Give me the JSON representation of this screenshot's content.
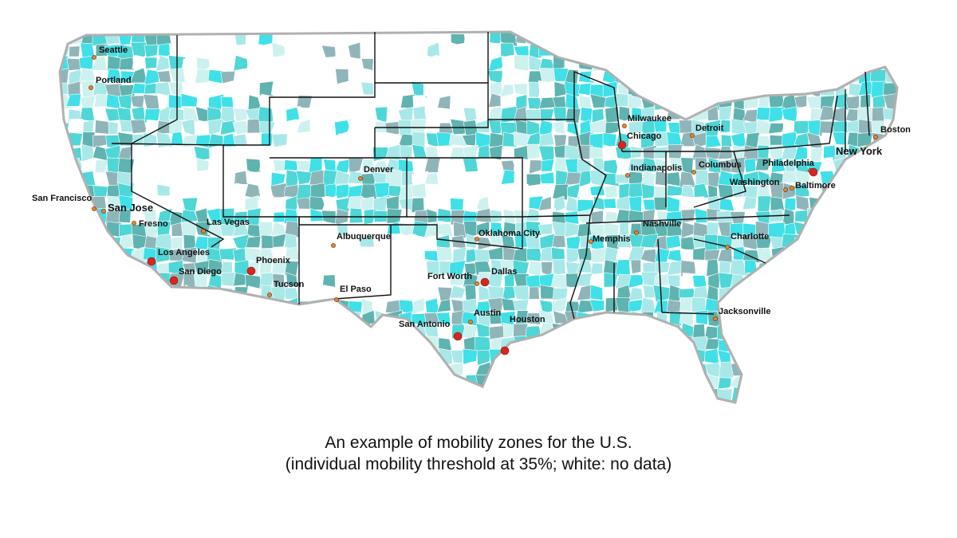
{
  "map": {
    "legend_note": "white: no data",
    "colors": {
      "teal_dark": "#5fb3b0",
      "teal_mid": "#4fd6d6",
      "teal_light": "#a8e8e8",
      "cyan": "#3fe0e8",
      "aqua_pale": "#cdf1ef",
      "blue_grey": "#8fb5b9",
      "no_data": "#ffffff",
      "border": "#111111",
      "outline": "#b0b0b0",
      "major_city": "#d8261e",
      "minor_city": "#d98a2b"
    },
    "cities": [
      {
        "name": "Seattle",
        "kind": "minor",
        "size": "normal"
      },
      {
        "name": "Portland",
        "kind": "minor",
        "size": "normal"
      },
      {
        "name": "San Francisco",
        "kind": "minor",
        "size": "normal"
      },
      {
        "name": "San Jose",
        "kind": "minor",
        "size": "big"
      },
      {
        "name": "Fresno",
        "kind": "minor",
        "size": "normal"
      },
      {
        "name": "Las Vegas",
        "kind": "minor",
        "size": "normal"
      },
      {
        "name": "Los Angeles",
        "kind": "major",
        "size": "normal"
      },
      {
        "name": "San Diego",
        "kind": "major",
        "size": "normal"
      },
      {
        "name": "Phoenix",
        "kind": "major",
        "size": "normal"
      },
      {
        "name": "Tucson",
        "kind": "minor",
        "size": "normal"
      },
      {
        "name": "Albuquerque",
        "kind": "minor",
        "size": "normal"
      },
      {
        "name": "El Paso",
        "kind": "minor",
        "size": "normal"
      },
      {
        "name": "Denver",
        "kind": "minor",
        "size": "normal"
      },
      {
        "name": "Oklahoma City",
        "kind": "minor",
        "size": "normal"
      },
      {
        "name": "Fort Worth",
        "kind": "minor",
        "size": "normal"
      },
      {
        "name": "Dallas",
        "kind": "major",
        "size": "normal"
      },
      {
        "name": "Austin",
        "kind": "minor",
        "size": "normal"
      },
      {
        "name": "San Antonio",
        "kind": "major",
        "size": "normal"
      },
      {
        "name": "Houston",
        "kind": "major",
        "size": "normal"
      },
      {
        "name": "Memphis",
        "kind": "minor",
        "size": "normal"
      },
      {
        "name": "Nashville",
        "kind": "minor",
        "size": "normal"
      },
      {
        "name": "Charlotte",
        "kind": "minor",
        "size": "normal"
      },
      {
        "name": "Jacksonville",
        "kind": "minor",
        "size": "normal"
      },
      {
        "name": "Milwaukee",
        "kind": "minor",
        "size": "normal"
      },
      {
        "name": "Chicago",
        "kind": "major",
        "size": "normal"
      },
      {
        "name": "Detroit",
        "kind": "minor",
        "size": "normal"
      },
      {
        "name": "Indianapolis",
        "kind": "minor",
        "size": "normal"
      },
      {
        "name": "Columbus",
        "kind": "minor",
        "size": "normal"
      },
      {
        "name": "Washington",
        "kind": "minor",
        "size": "normal"
      },
      {
        "name": "Baltimore",
        "kind": "minor",
        "size": "normal"
      },
      {
        "name": "Philadelphia",
        "kind": "minor",
        "size": "normal"
      },
      {
        "name": "New York",
        "kind": "major",
        "size": "big"
      },
      {
        "name": "Boston",
        "kind": "minor",
        "size": "normal"
      }
    ]
  },
  "caption": {
    "line1": "An example of mobility zones for the U.S.",
    "line2": "(individual mobility threshold at 35%; white: no data)"
  }
}
